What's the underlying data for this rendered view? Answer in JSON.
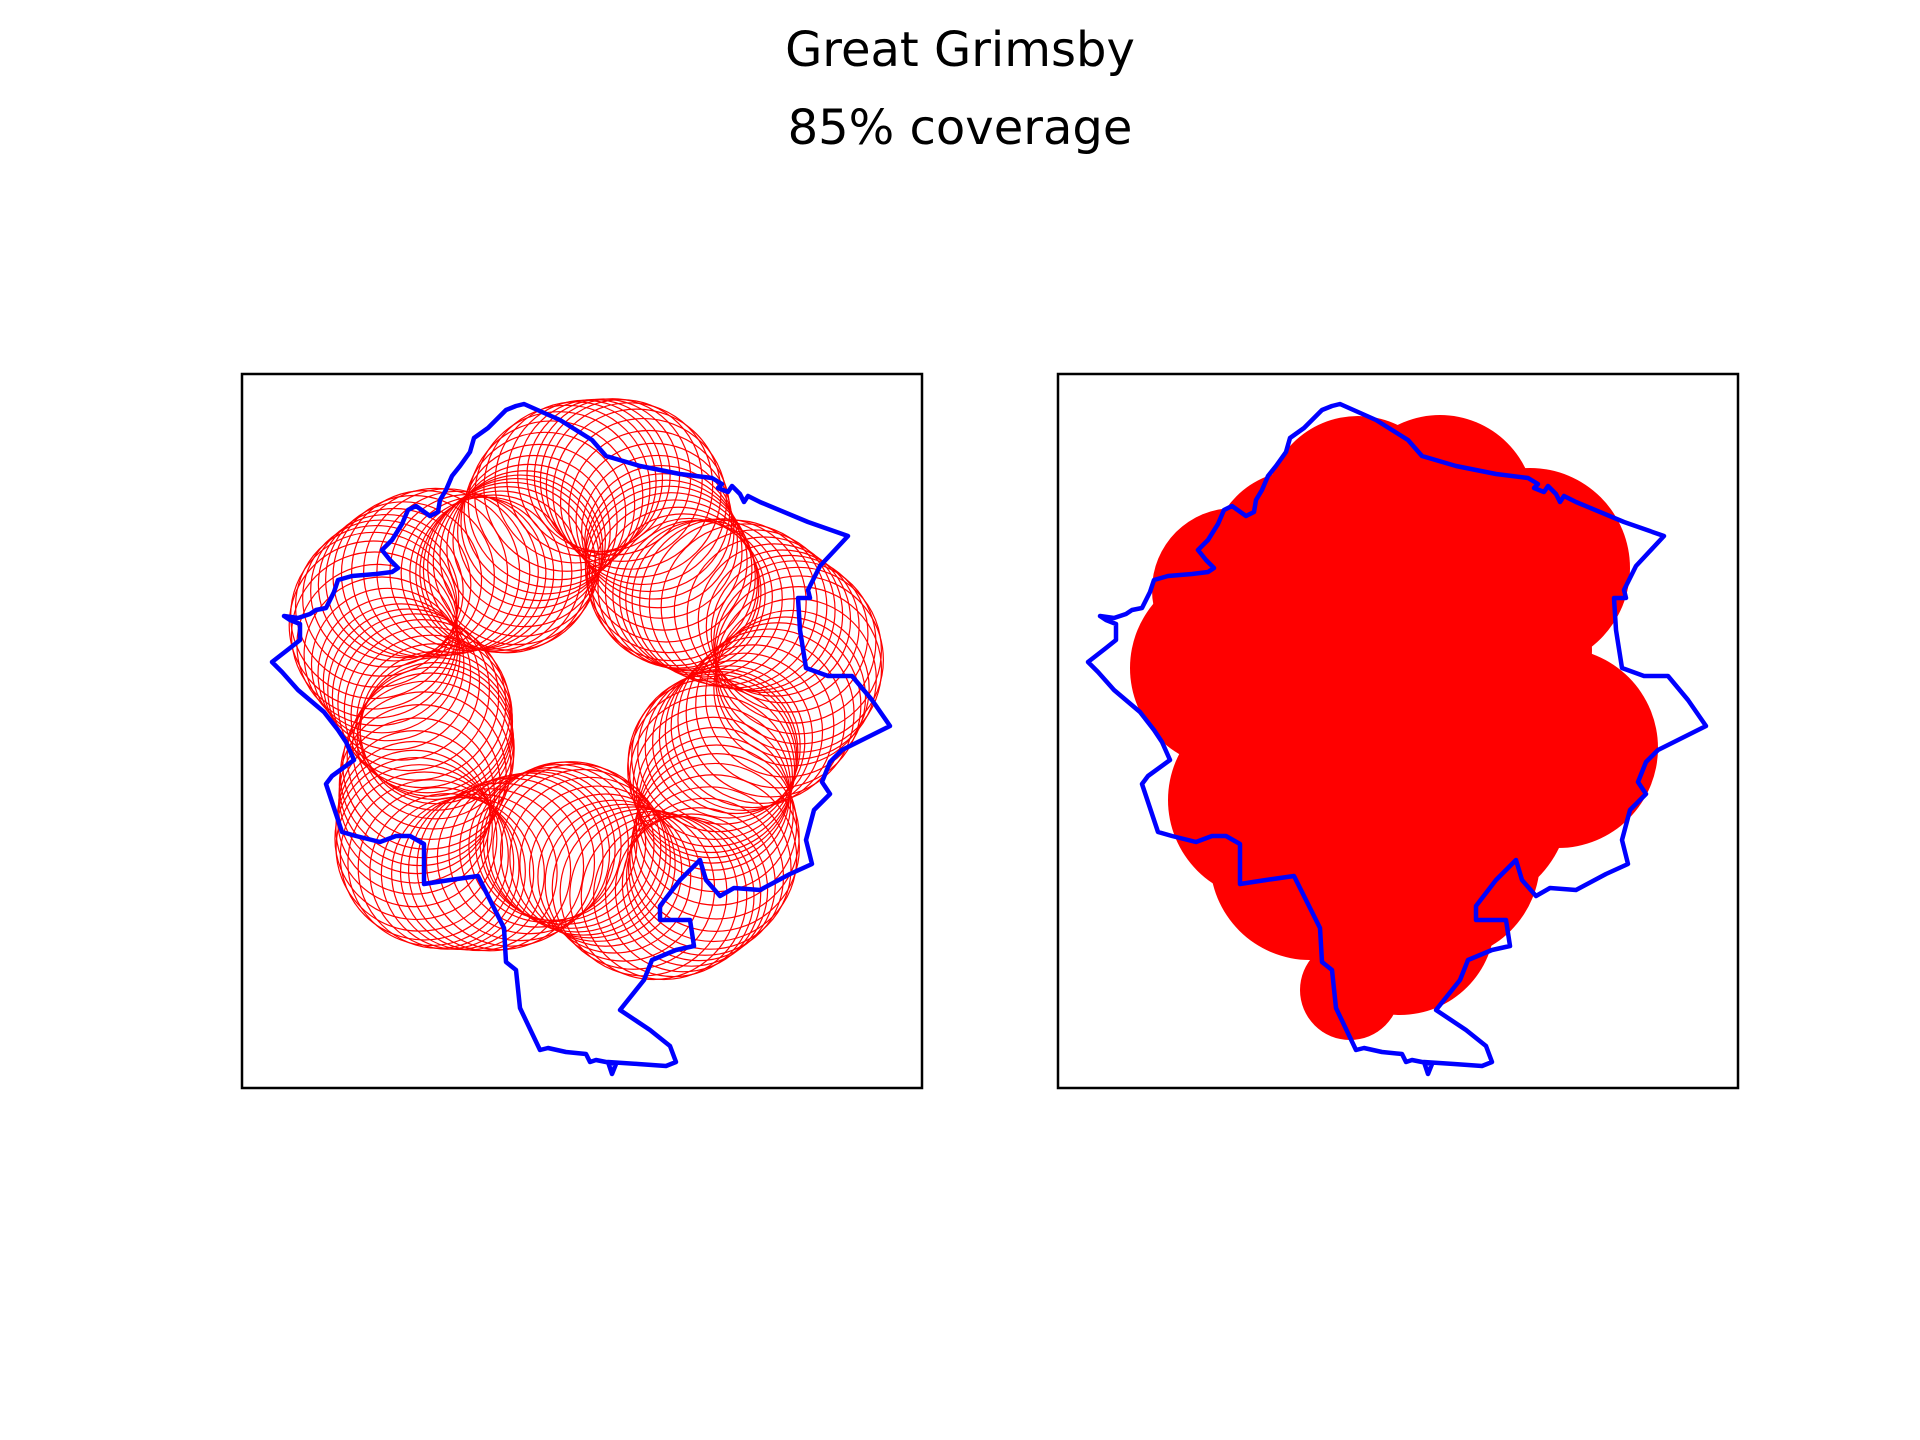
{
  "figure": {
    "title": "Great Grimsby",
    "subtitle": "85% coverage"
  },
  "colors": {
    "boundary": "#0000ff",
    "coverage": "#ff0000",
    "frame": "#000000",
    "background": "#ffffff"
  },
  "panels": [
    {
      "name": "coverage-circles-outline",
      "style": "outline"
    },
    {
      "name": "coverage-circles-filled",
      "style": "filled"
    }
  ]
}
